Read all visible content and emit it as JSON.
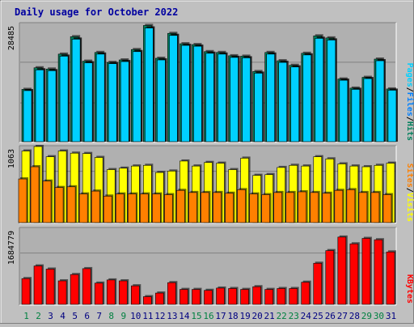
{
  "colors": {
    "background": "#c0c0c0",
    "plot_background": "#b0b0b0",
    "title": "#0000a0",
    "hits": "#00805c",
    "files": "#0080ff",
    "pages": "#00d0ff",
    "visits": "#ffff00",
    "sites": "#ff8000",
    "kbytes": "#ff0000",
    "weekend_day": "#008040",
    "weekday": "#000080"
  },
  "chart_data": [
    {
      "type": "bar",
      "title": "Daily usage for October 2022",
      "panel": "hits-files-pages",
      "categories": [
        "1",
        "2",
        "3",
        "4",
        "5",
        "6",
        "7",
        "8",
        "9",
        "10",
        "11",
        "12",
        "13",
        "14",
        "15",
        "16",
        "17",
        "18",
        "19",
        "20",
        "21",
        "22",
        "23",
        "24",
        "25",
        "26",
        "27",
        "28",
        "29",
        "30",
        "31"
      ],
      "weekend_days": [
        "1",
        "2",
        "8",
        "9",
        "15",
        "16",
        "22",
        "23",
        "29",
        "30"
      ],
      "y_max_label": "28485",
      "ylim": [
        0,
        28485
      ],
      "legend_right": [
        {
          "name": "Hits",
          "color": "#00805c"
        },
        {
          "name": "Files",
          "color": "#0080ff"
        },
        {
          "name": "Pages",
          "color": "#00d0ff"
        }
      ],
      "series": [
        {
          "name": "Hits",
          "values": [
            12600,
            17800,
            17500,
            21100,
            25300,
            19400,
            21500,
            19100,
            19700,
            22200,
            28000,
            20100,
            26100,
            23600,
            23400,
            21700,
            21500,
            20700,
            20600,
            16900,
            21500,
            19500,
            18400,
            21300,
            25500,
            25000,
            15100,
            12900,
            15500,
            19900,
            12700
          ]
        },
        {
          "name": "Files",
          "values": [
            12300,
            17300,
            17100,
            20600,
            24700,
            19000,
            21100,
            18800,
            19300,
            21700,
            27400,
            19700,
            25600,
            23200,
            23000,
            21300,
            21100,
            20300,
            20200,
            16500,
            21100,
            19100,
            18000,
            20900,
            24900,
            24500,
            14800,
            12600,
            15200,
            19500,
            12400
          ]
        },
        {
          "name": "Pages",
          "values": [
            12300,
            17300,
            17100,
            20600,
            24700,
            19000,
            21100,
            18800,
            19300,
            21700,
            27400,
            19700,
            25600,
            23200,
            23000,
            21300,
            21100,
            20300,
            20200,
            16500,
            21100,
            19100,
            18000,
            20900,
            24900,
            24500,
            14800,
            12600,
            15200,
            19500,
            12400
          ]
        }
      ]
    },
    {
      "type": "bar",
      "panel": "visits-sites",
      "categories": [
        "1",
        "2",
        "3",
        "4",
        "5",
        "6",
        "7",
        "8",
        "9",
        "10",
        "11",
        "12",
        "13",
        "14",
        "15",
        "16",
        "17",
        "18",
        "19",
        "20",
        "21",
        "22",
        "23",
        "24",
        "25",
        "26",
        "27",
        "28",
        "29",
        "30",
        "31"
      ],
      "y_max_label": "1063",
      "ylim": [
        0,
        1063
      ],
      "legend_right": [
        {
          "name": "Visits",
          "color": "#ffff00"
        },
        {
          "name": "Sites",
          "color": "#ff8000"
        }
      ],
      "series": [
        {
          "name": "Visits",
          "values": [
            1000,
            1063,
            920,
            1000,
            970,
            965,
            910,
            740,
            760,
            790,
            800,
            700,
            720,
            860,
            790,
            840,
            830,
            740,
            900,
            660,
            670,
            770,
            800,
            790,
            920,
            890,
            820,
            790,
            780,
            800,
            830
          ]
        },
        {
          "name": "Sites",
          "values": [
            610,
            780,
            580,
            490,
            500,
            400,
            440,
            370,
            400,
            400,
            400,
            400,
            390,
            450,
            420,
            420,
            420,
            410,
            460,
            400,
            390,
            420,
            420,
            430,
            420,
            410,
            450,
            460,
            420,
            420,
            390
          ]
        }
      ]
    },
    {
      "type": "bar",
      "panel": "kbytes",
      "categories": [
        "1",
        "2",
        "3",
        "4",
        "5",
        "6",
        "7",
        "8",
        "9",
        "10",
        "11",
        "12",
        "13",
        "14",
        "15",
        "16",
        "17",
        "18",
        "19",
        "20",
        "21",
        "22",
        "23",
        "24",
        "25",
        "26",
        "27",
        "28",
        "29",
        "30",
        "31"
      ],
      "y_max_label": "1684779",
      "ylim": [
        0,
        1684779
      ],
      "legend_right": [
        {
          "name": "KBytes",
          "color": "#ff0000"
        }
      ],
      "series": [
        {
          "name": "KBytes",
          "values": [
            570000,
            850000,
            780000,
            520000,
            660000,
            790000,
            470000,
            540000,
            520000,
            410000,
            170000,
            250000,
            480000,
            330000,
            330000,
            310000,
            360000,
            350000,
            330000,
            390000,
            330000,
            350000,
            350000,
            490000,
            910000,
            1190000,
            1490000,
            1340000,
            1460000,
            1430000,
            1160000
          ]
        }
      ]
    }
  ]
}
